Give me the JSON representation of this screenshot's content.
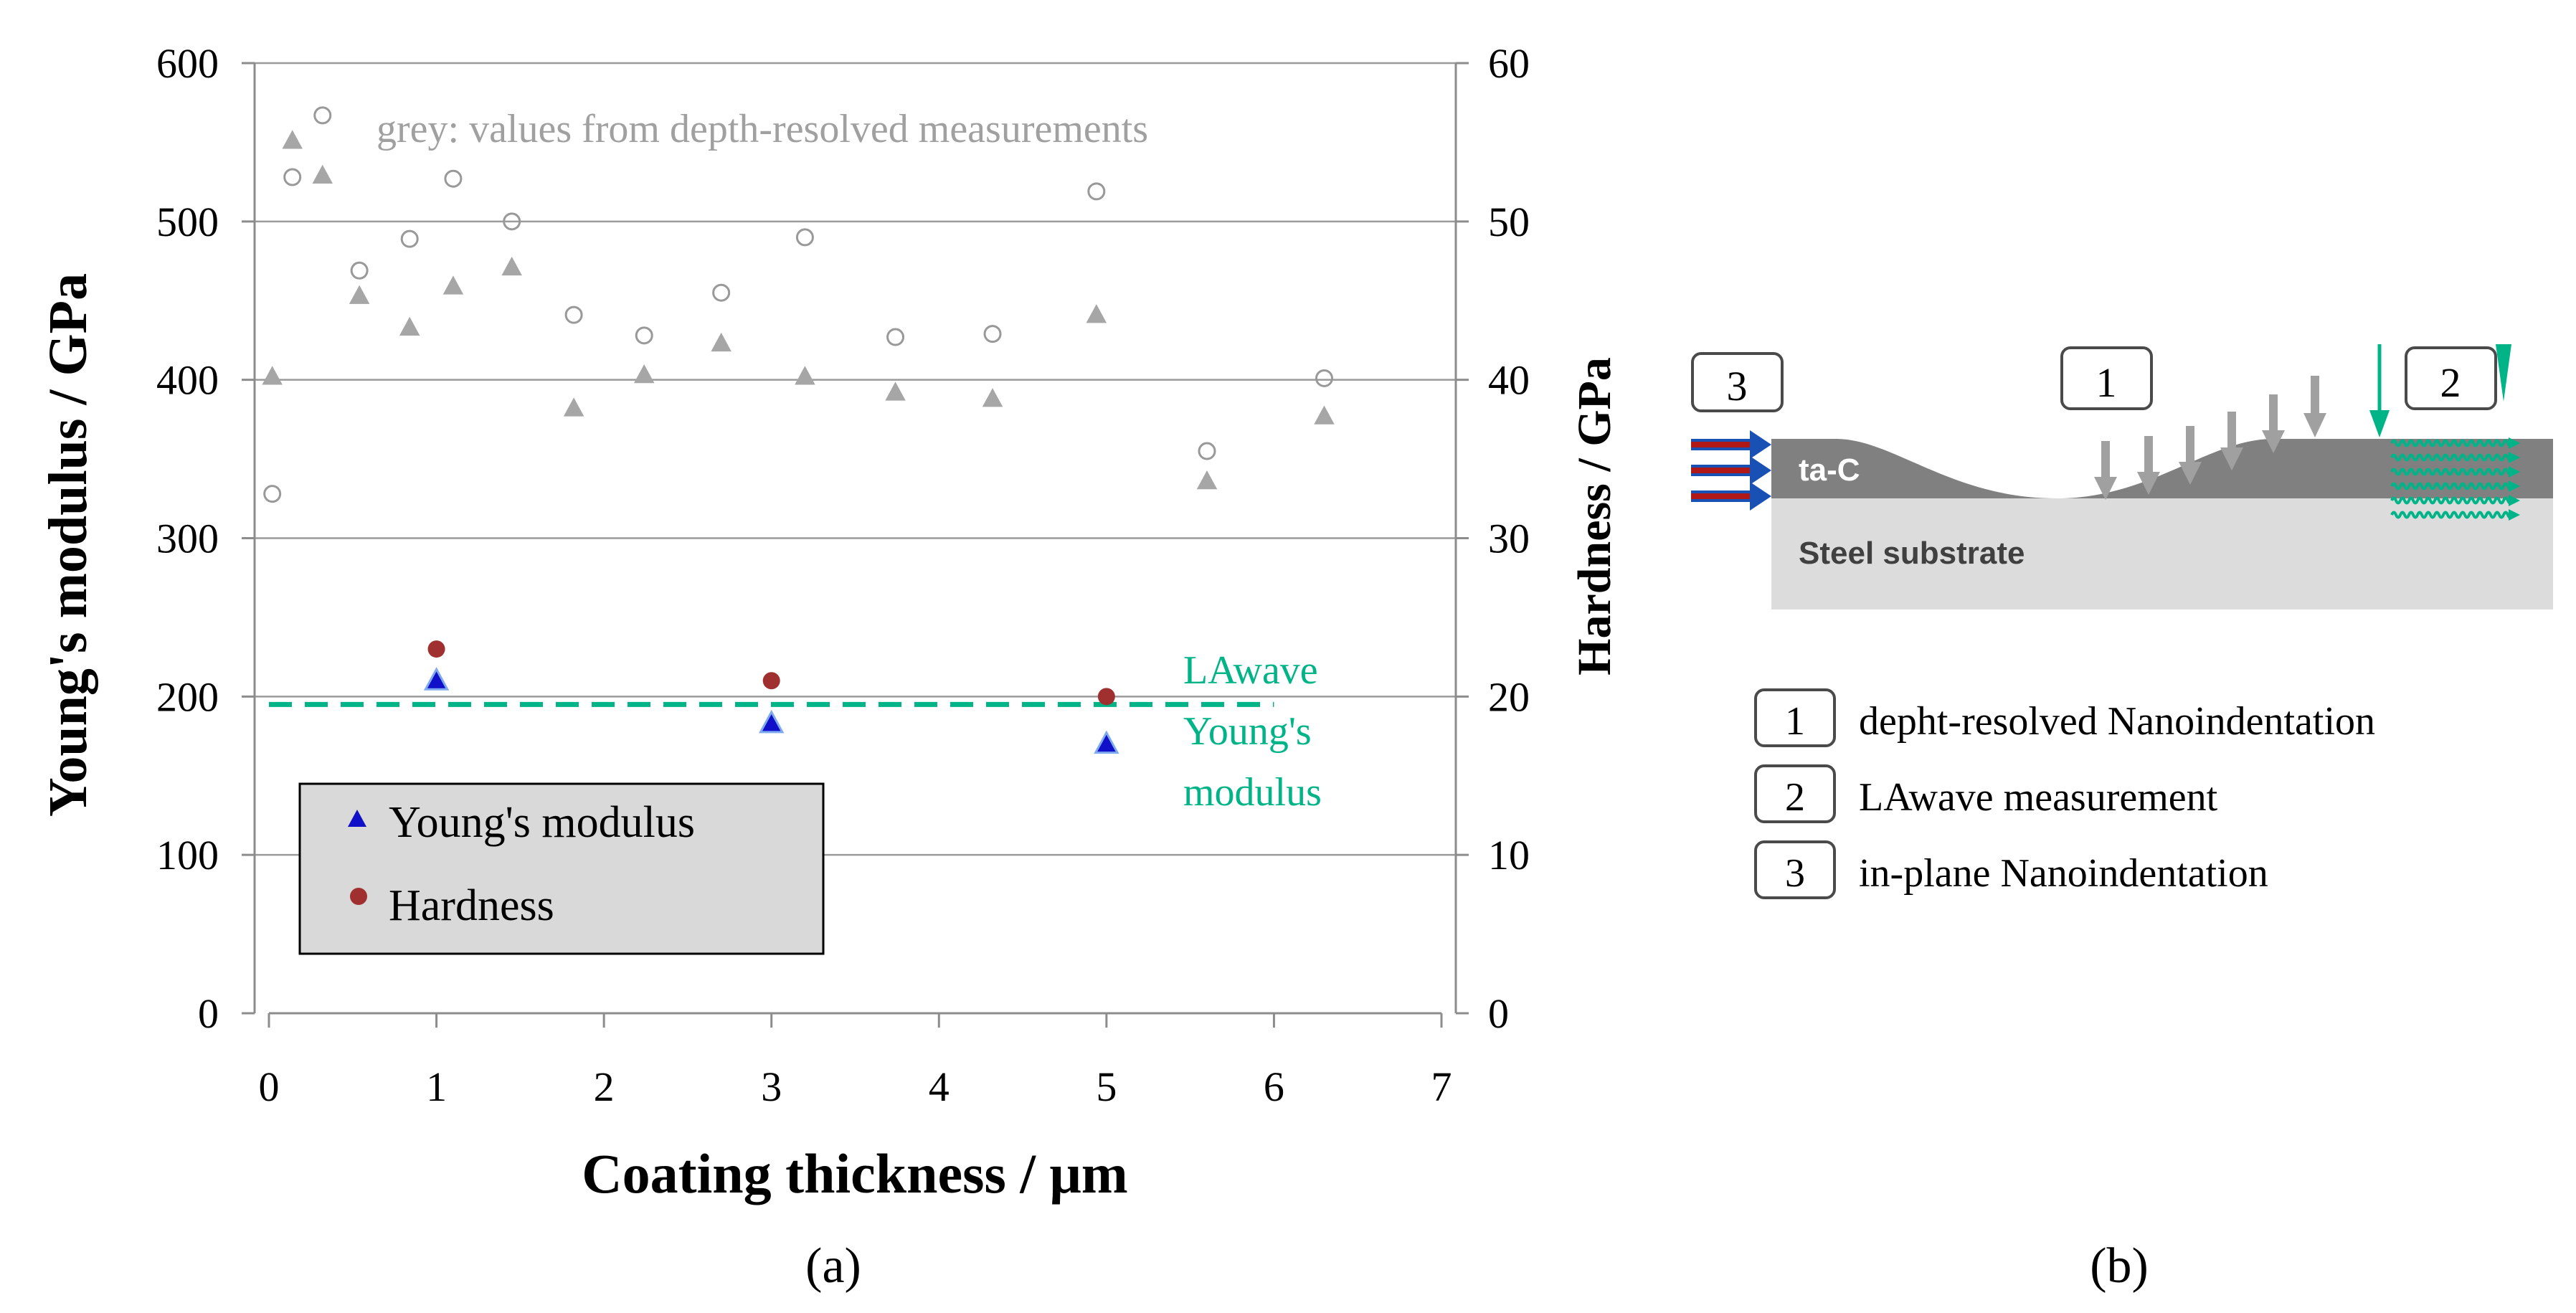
{
  "chart_data": {
    "type": "scatter",
    "xlabel": "Coating thickness / μm",
    "ylabel_left": "Young's modulus / GPa",
    "ylabel_right": "Hardness / GPa",
    "xlim": [
      0,
      7
    ],
    "ylim_left": [
      0,
      600
    ],
    "ylim_right": [
      0,
      60
    ],
    "x_ticks": [
      "0",
      "1",
      "2",
      "3",
      "4",
      "5",
      "6",
      "7"
    ],
    "y_left_ticks": [
      "0",
      "100",
      "200",
      "300",
      "400",
      "500",
      "600"
    ],
    "y_right_ticks": [
      "0",
      "10",
      "20",
      "30",
      "40",
      "50",
      "60"
    ],
    "gridlines": "horizontal",
    "annotation": "grey: values from depth-resolved measurements",
    "panel_label": "(a)",
    "series": [
      {
        "name": "Young's modulus",
        "axis": "left",
        "marker": "triangle",
        "color": "#1010c8",
        "points": [
          [
            1,
            210
          ],
          [
            3,
            183
          ],
          [
            5,
            170
          ]
        ]
      },
      {
        "name": "Hardness",
        "axis": "right",
        "marker": "circle",
        "color": "#a03030",
        "points": [
          [
            1,
            23
          ],
          [
            3,
            21
          ],
          [
            5,
            20
          ]
        ]
      },
      {
        "name": "depth-resolved Young's modulus",
        "axis": "left",
        "marker": "open-circle",
        "color": "#999999",
        "points": [
          [
            0.02,
            328
          ],
          [
            0.14,
            528
          ],
          [
            0.32,
            567
          ],
          [
            0.54,
            469
          ],
          [
            0.84,
            489
          ],
          [
            1.1,
            527
          ],
          [
            1.45,
            500
          ],
          [
            1.82,
            441
          ],
          [
            2.24,
            428
          ],
          [
            2.7,
            455
          ],
          [
            3.2,
            490
          ],
          [
            3.74,
            427
          ],
          [
            4.32,
            429
          ],
          [
            4.94,
            519
          ],
          [
            5.6,
            355
          ],
          [
            6.3,
            401
          ]
        ]
      },
      {
        "name": "depth-resolved hardness",
        "axis": "right",
        "marker": "triangle",
        "color": "#a6a6a6",
        "points": [
          [
            0.02,
            40.2
          ],
          [
            0.14,
            55.1
          ],
          [
            0.32,
            52.9
          ],
          [
            0.54,
            45.3
          ],
          [
            0.84,
            43.3
          ],
          [
            1.1,
            45.9
          ],
          [
            1.45,
            47.1
          ],
          [
            1.82,
            38.2
          ],
          [
            2.24,
            40.3
          ],
          [
            2.7,
            42.3
          ],
          [
            3.2,
            40.2
          ],
          [
            3.74,
            39.2
          ],
          [
            4.32,
            38.8
          ],
          [
            4.94,
            44.1
          ],
          [
            5.6,
            33.6
          ],
          [
            6.3,
            37.7
          ]
        ]
      },
      {
        "name": "LAwave Young's modulus",
        "axis": "left",
        "type": "reference-line",
        "color": "#00b488",
        "y": 195,
        "x_range": [
          0,
          6
        ],
        "label_lines": [
          "LAwave",
          "Young's",
          "modulus"
        ]
      }
    ],
    "legend": [
      "Young's modulus",
      "Hardness"
    ]
  },
  "diagram": {
    "panel_label": "(b)",
    "layer_top": "ta-C",
    "layer_bottom": "Steel substrate",
    "badges": [
      "1",
      "2",
      "3"
    ],
    "key": [
      {
        "number": "1",
        "label": "depht-resolved Nanoindentation"
      },
      {
        "number": "2",
        "label": "LAwave measurement"
      },
      {
        "number": "3",
        "label": "in-plane Nanoindentation"
      }
    ]
  },
  "colors": {
    "grey_marker": "#a6a6a6",
    "open_circle": "#999999",
    "ym_fill": "#1010c8",
    "hardness_fill": "#a03030",
    "lawave": "#00b488",
    "coating": "#808080",
    "substrate": "#dcdcdc",
    "arrow_red": "#b01818",
    "arrow_blue": "#1850b4",
    "arrow_grey": "#a0a0a0"
  }
}
